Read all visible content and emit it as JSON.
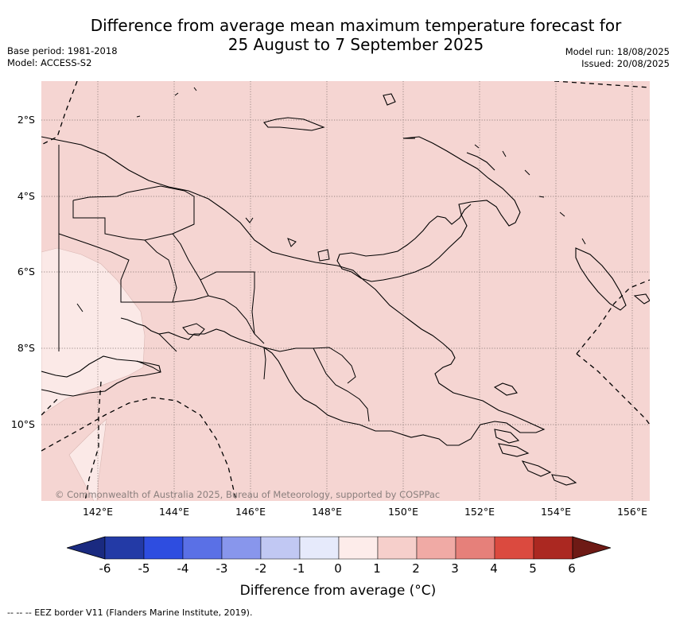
{
  "header": {
    "title_line1": "Difference from average mean maximum temperature forecast for",
    "title_line2": "25 August to 7 September 2025",
    "base_period": "Base period: 1981-2018",
    "model": "Model: ACCESS-S2",
    "model_run": "Model run: 18/08/2025",
    "issued": "Issued: 20/08/2025"
  },
  "map": {
    "background_color": "#f5d5d2",
    "light_region_color": "#fbe9e7",
    "lat_labels": [
      "2°S",
      "4°S",
      "6°S",
      "8°S",
      "10°S"
    ],
    "lon_labels": [
      "142°E",
      "144°E",
      "146°E",
      "148°E",
      "150°E",
      "152°E",
      "154°E",
      "156°E"
    ],
    "copyright": "© Commonwealth of Australia 2025, Bureau of Meteorology, supported by COSPPac"
  },
  "colorbar": {
    "tick_labels": [
      "-6",
      "-5",
      "-4",
      "-3",
      "-2",
      "-1",
      "0",
      "1",
      "2",
      "3",
      "4",
      "5",
      "6"
    ],
    "colors": [
      "#233aa6",
      "#2e4de0",
      "#5a70e6",
      "#8896ec",
      "#c1c8f3",
      "#e6eafb",
      "#fdecea",
      "#f6cfcb",
      "#f0aaa5",
      "#e6807a",
      "#db4a3f",
      "#ab2821"
    ],
    "end_colors": {
      "low": "#1a2a80",
      "high": "#6e1a15"
    },
    "label": "Difference from average (°C)"
  },
  "footnote": "--  --  -- EEZ border V11 (Flanders Marine Institute, 2019)."
}
